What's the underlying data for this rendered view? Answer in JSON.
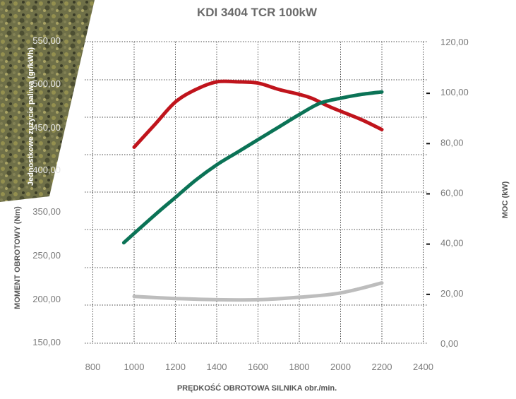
{
  "chart_data": {
    "type": "line",
    "title": "KDI 3404 TCR 100kW",
    "xlabel": "PRĘDKOŚĆ OBROTOWA SILNIKA obr./min.",
    "ylabel_left_outer": "MOMENT OBROTOWY (Nm)",
    "ylabel_left_inner": "Jednostkowe zużycie paliwa (gr/kWh)",
    "ylabel_right": "MOC (kW)",
    "x_ticks": [
      "800",
      "1000",
      "1200",
      "1400",
      "1600",
      "1800",
      "2000",
      "2200",
      "2400"
    ],
    "xlim": [
      800,
      2400
    ],
    "left_ticks_torque": [
      "150,00",
      "200,00",
      "250,00",
      "350,00",
      "400,00",
      "450,00",
      "500,00",
      "550,00"
    ],
    "right_ticks_power": [
      "0,00",
      "20,00",
      "40,00",
      "60,00",
      "80,00",
      "100,00",
      "120,00"
    ],
    "right_lim": [
      0,
      120
    ],
    "grid": true,
    "series": [
      {
        "axis": "right",
        "color": "#c0141c",
        "values": [
          [
            1000,
            78
          ],
          [
            1100,
            87
          ],
          [
            1200,
            96
          ],
          [
            1300,
            101
          ],
          [
            1400,
            104
          ],
          [
            1500,
            104
          ],
          [
            1600,
            103.5
          ],
          [
            1700,
            101
          ],
          [
            1800,
            99
          ],
          [
            1860,
            97.5
          ],
          [
            1950,
            94
          ],
          [
            2100,
            89
          ],
          [
            2200,
            85
          ]
        ]
      },
      {
        "axis": "right",
        "color": "#0b7356",
        "values": [
          [
            950,
            40
          ],
          [
            1100,
            51
          ],
          [
            1200,
            58
          ],
          [
            1300,
            65
          ],
          [
            1400,
            71
          ],
          [
            1500,
            76
          ],
          [
            1600,
            81
          ],
          [
            1700,
            86
          ],
          [
            1800,
            91
          ],
          [
            1900,
            95.5
          ],
          [
            2000,
            97.5
          ],
          [
            2100,
            99
          ],
          [
            2200,
            100
          ]
        ]
      },
      {
        "axis": "right",
        "color": "#bdbdbd",
        "values": [
          [
            1000,
            18.6
          ],
          [
            1200,
            17.8
          ],
          [
            1400,
            17.3
          ],
          [
            1600,
            17.3
          ],
          [
            1800,
            18.3
          ],
          [
            2000,
            20
          ],
          [
            2200,
            24
          ]
        ]
      }
    ]
  }
}
